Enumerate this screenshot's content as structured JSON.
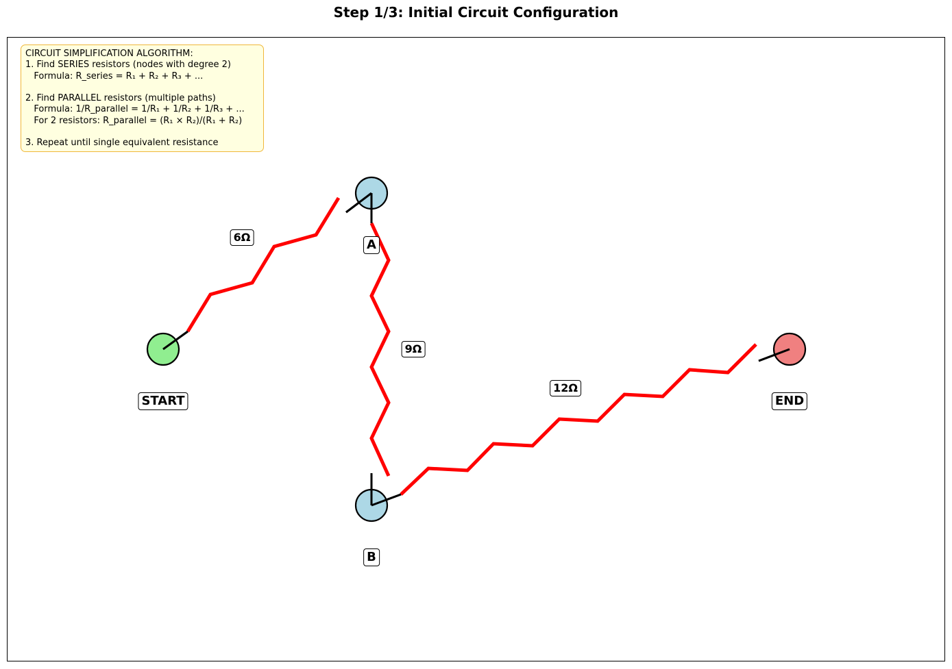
{
  "title": "Step 1/3: Initial Circuit Configuration",
  "algorithm_box": {
    "lines": [
      "CIRCUIT SIMPLIFICATION ALGORITHM:",
      "1. Find SERIES resistors (nodes with degree 2)",
      "   Formula: R_series = R₁ + R₂ + R₃ + ...",
      "",
      "2. Find PARALLEL resistors (multiple paths)",
      "   Formula: 1/R_parallel = 1/R₁ + 1/R₂ + 1/R₃ + ...",
      "   For 2 resistors: R_parallel = (R₁ × R₂)/(R₁ + R₂)",
      "",
      "3. Repeat until single equivalent resistance"
    ],
    "background": "#ffffe0",
    "border_color": "#f0b73a"
  },
  "nodes": [
    {
      "id": "start",
      "label": "START",
      "color": "#90ee90"
    },
    {
      "id": "a",
      "label": "A",
      "color": "#add8e6"
    },
    {
      "id": "b",
      "label": "B",
      "color": "#add8e6"
    },
    {
      "id": "end",
      "label": "END",
      "color": "#f08080"
    }
  ],
  "resistors": [
    {
      "from": "start",
      "to": "a",
      "label": "6Ω",
      "color": "#ff0000"
    },
    {
      "from": "a",
      "to": "b",
      "label": "9Ω",
      "color": "#ff0000"
    },
    {
      "from": "b",
      "to": "end",
      "label": "12Ω",
      "color": "#ff0000"
    }
  ]
}
